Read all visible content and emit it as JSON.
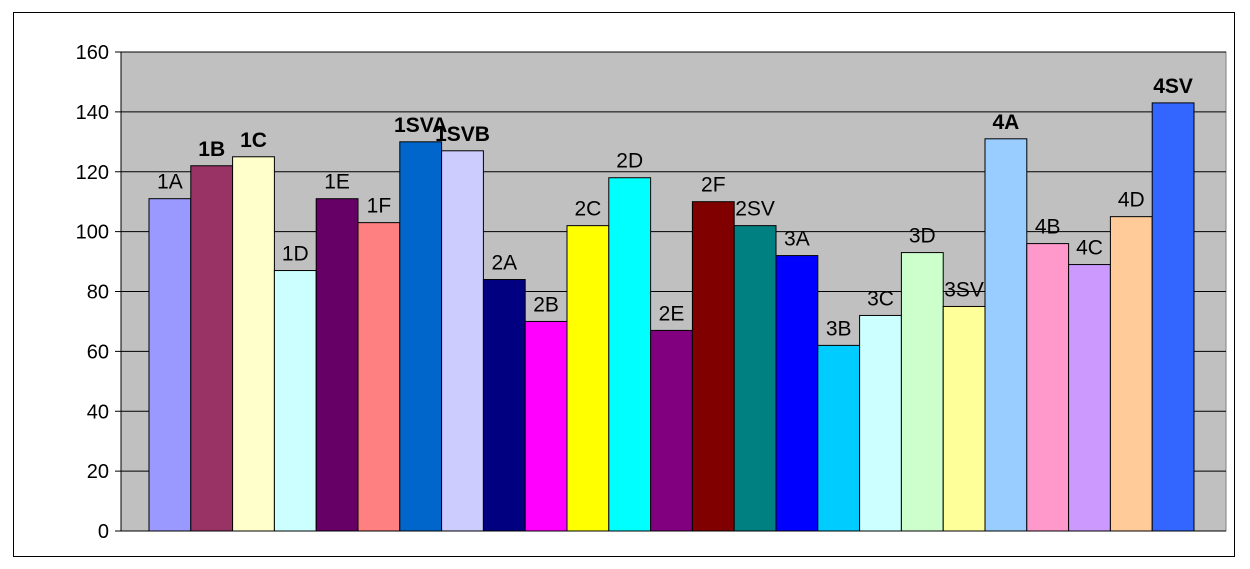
{
  "chart_data": {
    "type": "bar",
    "ylim": [
      0,
      160
    ],
    "yticks": [
      0,
      20,
      40,
      60,
      80,
      100,
      120,
      140,
      160
    ],
    "grid": true,
    "plot_background": "#c0c0c0",
    "categories": [
      "1A",
      "1B",
      "1C",
      "1D",
      "1E",
      "1F",
      "1SVA",
      "1SVB",
      "2A",
      "2B",
      "2C",
      "2D",
      "2E",
      "2F",
      "2SV",
      "3A",
      "3B",
      "3C",
      "3D",
      "3SV",
      "4A",
      "4B",
      "4C",
      "4D",
      "4SV"
    ],
    "values": [
      111,
      122,
      125,
      87,
      111,
      103,
      130,
      127,
      84,
      70,
      102,
      118,
      67,
      110,
      102,
      92,
      62,
      72,
      93,
      75,
      131,
      96,
      89,
      105,
      143
    ],
    "colors": [
      "#9999ff",
      "#993366",
      "#ffffcc",
      "#ccffff",
      "#660066",
      "#ff8080",
      "#0066cc",
      "#ccccff",
      "#000080",
      "#ff00ff",
      "#ffff00",
      "#00ffff",
      "#800080",
      "#800000",
      "#008080",
      "#0000ff",
      "#00ccff",
      "#ccffff",
      "#ccffcc",
      "#ffff99",
      "#99ccff",
      "#ff99cc",
      "#cc99ff",
      "#ffcc99",
      "#3366ff"
    ],
    "bold_labels": [
      "1B",
      "1C",
      "1SVA",
      "1SVB",
      "4A",
      "4SV"
    ]
  }
}
